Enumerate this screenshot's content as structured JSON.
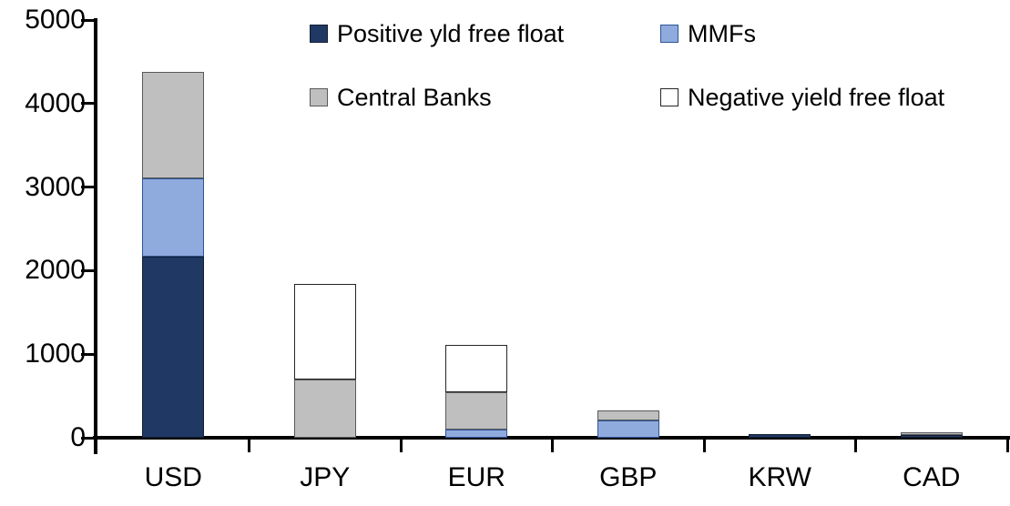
{
  "chart_data": {
    "type": "bar",
    "stacked": true,
    "title": "",
    "xlabel": "",
    "ylabel": "",
    "categories": [
      "USD",
      "JPY",
      "EUR",
      "GBP",
      "KRW",
      "CAD"
    ],
    "series": [
      {
        "name": "Positive yld free float",
        "color": "#1F3864",
        "edge": "#141F33",
        "values": [
          2170,
          0,
          0,
          0,
          45,
          30
        ]
      },
      {
        "name": "MMFs",
        "color": "#8FAADC",
        "edge": "#2E5597",
        "values": [
          930,
          0,
          100,
          210,
          0,
          0
        ]
      },
      {
        "name": "Central Banks",
        "color": "#BFBFBF",
        "edge": "#595959",
        "values": [
          1280,
          695,
          440,
          120,
          0,
          40
        ]
      },
      {
        "name": "Negative yield free float",
        "color": "#FFFFFF",
        "edge": "#262626",
        "values": [
          0,
          1150,
          570,
          0,
          0,
          0
        ]
      }
    ],
    "totals": [
      4380,
      1845,
      1110,
      330,
      45,
      70
    ],
    "ylim": [
      0,
      5000
    ],
    "y_ticks": [
      0,
      1000,
      2000,
      3000,
      4000,
      5000
    ],
    "y_tick_labels": [
      "0",
      "1000",
      "2000",
      "3000",
      "4000",
      "5000"
    ],
    "grid": false,
    "legend_position": "top",
    "axis_color": "#000000",
    "background_color": "#FFFFFF"
  }
}
